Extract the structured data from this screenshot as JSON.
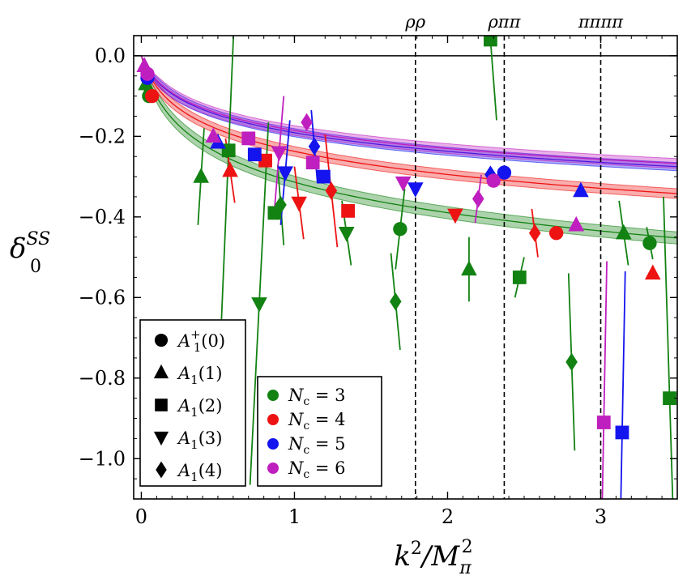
{
  "chart_data": {
    "type": "scatter",
    "xlabel": "k²/M²π",
    "ylabel": "δ₀ˢˢ",
    "xlim": [
      -0.05,
      3.5
    ],
    "ylim": [
      -1.1,
      0.05
    ],
    "x_ticks": [
      0,
      1,
      2,
      3
    ],
    "y_ticks": [
      0.0,
      -0.2,
      -0.4,
      -0.6,
      -0.8,
      -1.0
    ],
    "x_tick_labels": [
      "0",
      "1",
      "2",
      "3"
    ],
    "y_tick_labels": [
      "0.0",
      "−0.2",
      "−0.4",
      "−0.6",
      "−0.8",
      "−1.0"
    ],
    "xlabel_parts": {
      "base": "k",
      "sup": "2",
      "slash": "/M",
      "sub": "π",
      "sup2": "2"
    },
    "ylabel_parts": {
      "base": "δ",
      "sub": "0",
      "sup": "SS"
    },
    "zero_line": 0.0,
    "thresholds": [
      {
        "x": 1.79,
        "label": "ρρ"
      },
      {
        "x": 2.37,
        "label": "ρππ"
      },
      {
        "x": 3.0,
        "label": "ππππ"
      }
    ],
    "marker_legend": [
      {
        "shape": "circle",
        "base": "A",
        "sub": "1",
        "sup": "+",
        "arg": "(0)"
      },
      {
        "shape": "triangle-up",
        "base": "A",
        "sub": "1",
        "sup": "",
        "arg": "(1)"
      },
      {
        "shape": "square",
        "base": "A",
        "sub": "1",
        "sup": "",
        "arg": "(2)"
      },
      {
        "shape": "triangle-down",
        "base": "A",
        "sub": "1",
        "sup": "",
        "arg": "(3)"
      },
      {
        "shape": "diamond",
        "base": "A",
        "sub": "1",
        "sup": "",
        "arg": "(4)"
      }
    ],
    "series": [
      {
        "name": "Nc = 3",
        "nc_label": "N",
        "nc_sub": "c",
        "nc_val": "= 3",
        "color": "#128212",
        "fit": {
          "a": -0.115,
          "b": 0.07,
          "band": 0.015
        },
        "points": [
          {
            "x": 0.03,
            "y": -0.07,
            "shape": "triangle-up",
            "ex": -0.01,
            "ey": 0.02
          },
          {
            "x": 0.05,
            "y": -0.1,
            "shape": "circle",
            "ex": 0.0,
            "ey": 0.0
          },
          {
            "x": 0.39,
            "y": -0.3,
            "shape": "triangle-up",
            "ex": -0.02,
            "ey": 0.12
          },
          {
            "x": 0.57,
            "y": -0.235,
            "shape": "square",
            "ex": -0.05,
            "ey": 0.45
          },
          {
            "x": 0.77,
            "y": -0.615,
            "shape": "triangle-down",
            "ex": -0.06,
            "ey": 0.45
          },
          {
            "x": 0.87,
            "y": -0.39,
            "shape": "square",
            "ex": 0.0,
            "ey": 0.0
          },
          {
            "x": 0.91,
            "y": -0.37,
            "shape": "diamond",
            "ex": 0.02,
            "ey": 0.1
          },
          {
            "x": 1.34,
            "y": -0.44,
            "shape": "triangle-down",
            "ex": 0.03,
            "ey": 0.08
          },
          {
            "x": 1.69,
            "y": -0.43,
            "shape": "circle",
            "ex": -0.03,
            "ey": 0.1
          },
          {
            "x": 1.66,
            "y": -0.61,
            "shape": "diamond",
            "ex": 0.03,
            "ey": 0.12
          },
          {
            "x": 2.14,
            "y": -0.53,
            "shape": "triangle-up",
            "ex": 0.0,
            "ey": 0.08
          },
          {
            "x": 2.28,
            "y": 0.04,
            "shape": "square",
            "ex": 0.04,
            "ey": 0.2
          },
          {
            "x": 2.47,
            "y": -0.55,
            "shape": "square",
            "ex": -0.03,
            "ey": 0.05
          },
          {
            "x": 2.81,
            "y": -0.76,
            "shape": "diamond",
            "ex": 0.02,
            "ey": 0.22
          },
          {
            "x": 3.15,
            "y": -0.44,
            "shape": "triangle-up",
            "ex": 0.03,
            "ey": 0.08
          },
          {
            "x": 3.32,
            "y": -0.465,
            "shape": "circle",
            "ex": 0.02,
            "ey": 0.04
          },
          {
            "x": 3.45,
            "y": -0.85,
            "shape": "square",
            "ex": 0.04,
            "ey": 0.5
          }
        ]
      },
      {
        "name": "Nc = 4",
        "nc_label": "N",
        "nc_sub": "c",
        "nc_val": "= 4",
        "color": "#ee1313",
        "fit": {
          "a": -0.087,
          "b": 0.07,
          "band": 0.012
        },
        "points": [
          {
            "x": 0.07,
            "y": -0.1,
            "shape": "circle",
            "ex": 0.0,
            "ey": 0.0
          },
          {
            "x": 0.58,
            "y": -0.285,
            "shape": "triangle-up",
            "ex": 0.03,
            "ey": 0.08
          },
          {
            "x": 0.81,
            "y": -0.26,
            "shape": "square",
            "ex": 0.0,
            "ey": 0.0
          },
          {
            "x": 1.03,
            "y": -0.365,
            "shape": "triangle-down",
            "ex": 0.03,
            "ey": 0.09
          },
          {
            "x": 1.24,
            "y": -0.335,
            "shape": "diamond",
            "ex": 0.04,
            "ey": 0.14
          },
          {
            "x": 1.35,
            "y": -0.385,
            "shape": "square",
            "ex": 0.0,
            "ey": 0.0
          },
          {
            "x": 2.05,
            "y": -0.395,
            "shape": "triangle-down",
            "ex": 0.0,
            "ey": 0.0
          },
          {
            "x": 2.57,
            "y": -0.44,
            "shape": "diamond",
            "ex": 0.02,
            "ey": 0.06
          },
          {
            "x": 2.71,
            "y": -0.44,
            "shape": "circle",
            "ex": 0.0,
            "ey": 0.0
          },
          {
            "x": 3.34,
            "y": -0.54,
            "shape": "triangle-up",
            "ex": 0.0,
            "ey": 0.0
          }
        ]
      },
      {
        "name": "Nc = 5",
        "nc_label": "N",
        "nc_sub": "c",
        "nc_val": "= 5",
        "color": "#1414ee",
        "fit": {
          "a": -0.07,
          "b": 0.07,
          "band": 0.01
        },
        "points": [
          {
            "x": 0.04,
            "y": -0.055,
            "shape": "circle",
            "ex": 0.0,
            "ey": 0.0
          },
          {
            "x": 0.5,
            "y": -0.215,
            "shape": "triangle-up",
            "ex": 0.0,
            "ey": 0.0
          },
          {
            "x": 0.74,
            "y": -0.245,
            "shape": "square",
            "ex": 0.0,
            "ey": 0.0
          },
          {
            "x": 0.94,
            "y": -0.29,
            "shape": "triangle-down",
            "ex": -0.03,
            "ey": 0.13
          },
          {
            "x": 1.13,
            "y": -0.225,
            "shape": "diamond",
            "ex": 0.02,
            "ey": 0.09
          },
          {
            "x": 1.19,
            "y": -0.3,
            "shape": "square",
            "ex": 0.0,
            "ey": 0.0
          },
          {
            "x": 1.79,
            "y": -0.33,
            "shape": "triangle-down",
            "ex": 0.0,
            "ey": 0.0
          },
          {
            "x": 2.28,
            "y": -0.295,
            "shape": "diamond",
            "ex": 0.0,
            "ey": 0.0
          },
          {
            "x": 2.37,
            "y": -0.29,
            "shape": "circle",
            "ex": 0.0,
            "ey": 0.0
          },
          {
            "x": 2.87,
            "y": -0.335,
            "shape": "triangle-up",
            "ex": 0.0,
            "ey": 0.0
          },
          {
            "x": 3.14,
            "y": -0.935,
            "shape": "square",
            "ex": -0.02,
            "ey": 0.4
          }
        ]
      },
      {
        "name": "Nc = 6",
        "nc_label": "N",
        "nc_sub": "c",
        "nc_val": "= 6",
        "color": "#bf1fbf",
        "fit": {
          "a": -0.068,
          "b": 0.07,
          "band": 0.012
        },
        "points": [
          {
            "x": 0.02,
            "y": -0.025,
            "shape": "triangle-up",
            "ex": 0.0,
            "ey": 0.0
          },
          {
            "x": 0.04,
            "y": -0.045,
            "shape": "circle",
            "ex": 0.0,
            "ey": 0.0
          },
          {
            "x": 0.47,
            "y": -0.2,
            "shape": "triangle-up",
            "ex": 0.0,
            "ey": 0.0
          },
          {
            "x": 0.7,
            "y": -0.205,
            "shape": "square",
            "ex": 0.0,
            "ey": 0.0
          },
          {
            "x": 0.9,
            "y": -0.24,
            "shape": "triangle-down",
            "ex": -0.03,
            "ey": 0.14
          },
          {
            "x": 1.08,
            "y": -0.165,
            "shape": "diamond",
            "ex": 0.0,
            "ey": 0.0
          },
          {
            "x": 1.12,
            "y": -0.265,
            "shape": "square",
            "ex": 0.0,
            "ey": 0.0
          },
          {
            "x": 1.71,
            "y": -0.315,
            "shape": "triangle-down",
            "ex": 0.0,
            "ey": 0.0
          },
          {
            "x": 2.2,
            "y": -0.355,
            "shape": "diamond",
            "ex": -0.02,
            "ey": 0.06
          },
          {
            "x": 2.3,
            "y": -0.31,
            "shape": "circle",
            "ex": 0.0,
            "ey": 0.0
          },
          {
            "x": 2.84,
            "y": -0.42,
            "shape": "triangle-up",
            "ex": 0.0,
            "ey": 0.0
          },
          {
            "x": 3.02,
            "y": -0.91,
            "shape": "square",
            "ex": -0.02,
            "ey": 0.4
          }
        ]
      }
    ]
  }
}
